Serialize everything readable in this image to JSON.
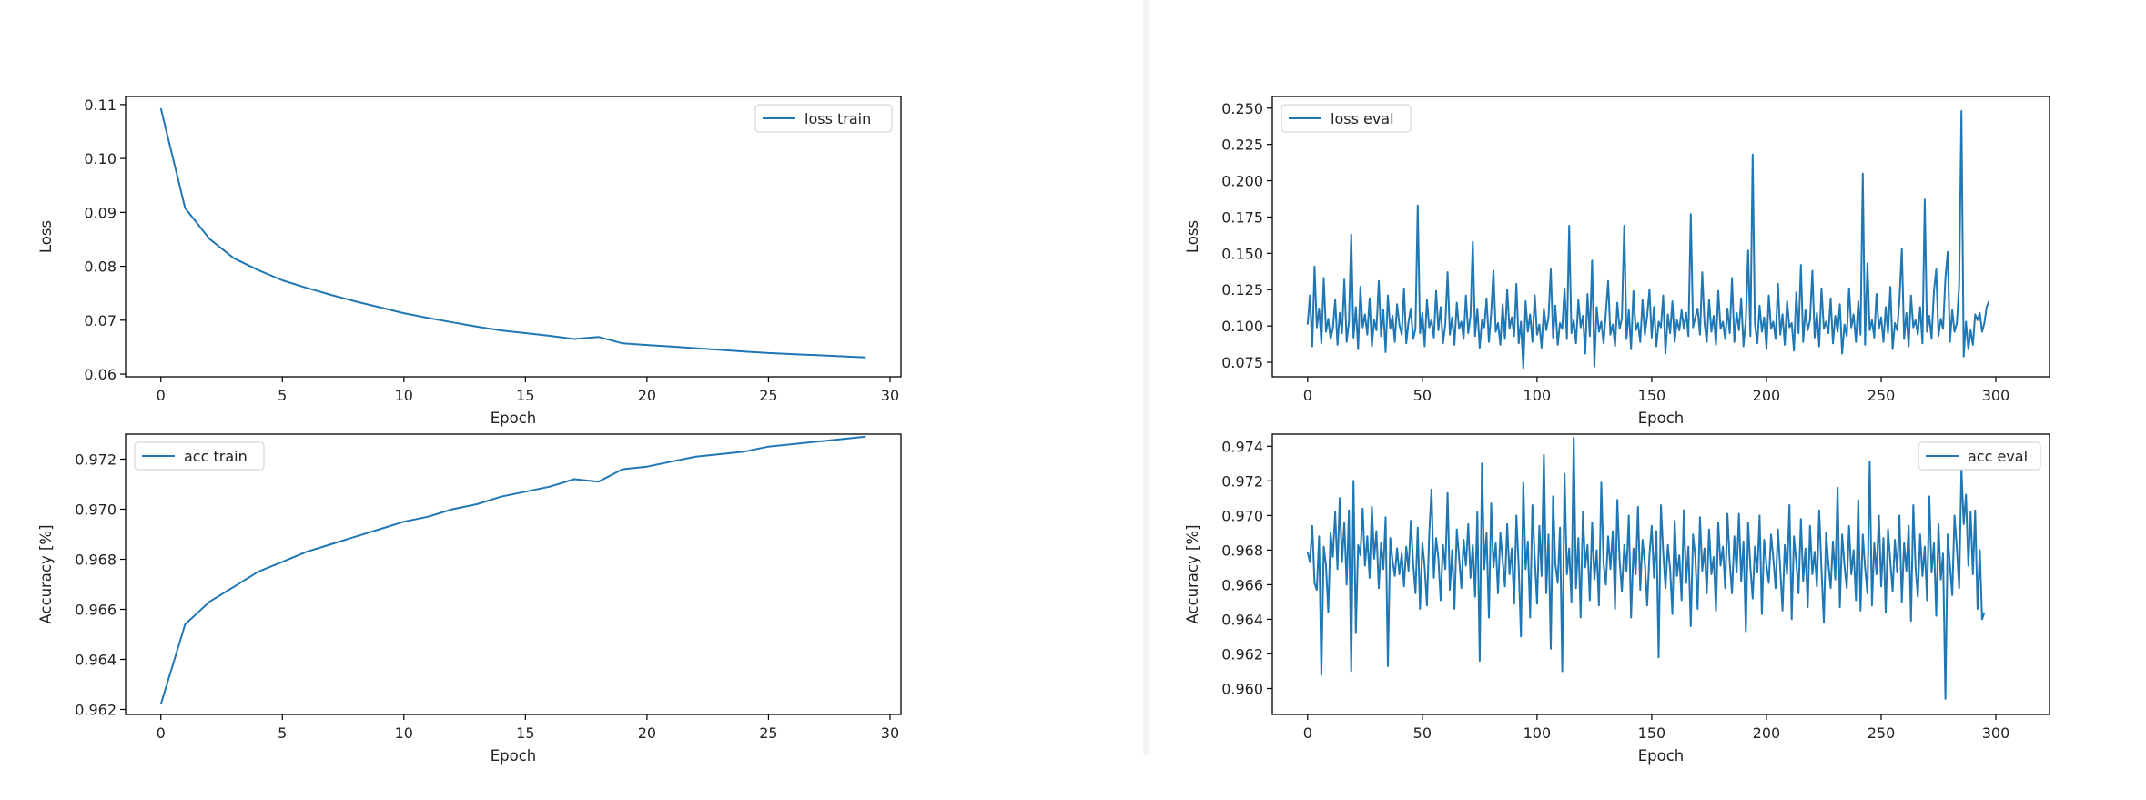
{
  "line_color": "#1f77b4",
  "chart_data": [
    {
      "type": "line",
      "id": "loss-train",
      "xlabel": "Epoch",
      "ylabel": "Loss",
      "xlim": [
        -1.45,
        30.45
      ],
      "ylim": [
        0.0595,
        0.1115
      ],
      "xticks": [
        0,
        5,
        10,
        15,
        20,
        25,
        30
      ],
      "yticks": [
        0.06,
        0.07,
        0.08,
        0.09,
        0.1,
        0.11
      ],
      "ytick_labels": [
        "0.06",
        "0.07",
        "0.08",
        "0.09",
        "0.10",
        "0.11"
      ],
      "legend_position": "top-right",
      "series": [
        {
          "name": "loss train",
          "x": [
            0,
            1,
            2,
            3,
            4,
            5,
            6,
            7,
            8,
            9,
            10,
            11,
            12,
            13,
            14,
            15,
            16,
            17,
            18,
            19,
            20,
            21,
            22,
            23,
            24,
            25,
            26,
            27,
            28,
            29
          ],
          "y": [
            0.1093,
            0.0908,
            0.0851,
            0.0815,
            0.0793,
            0.0774,
            0.076,
            0.0747,
            0.0735,
            0.0724,
            0.0713,
            0.0704,
            0.0696,
            0.0688,
            0.0681,
            0.0676,
            0.0671,
            0.0665,
            0.0669,
            0.0657,
            0.0654,
            0.0651,
            0.0648,
            0.0645,
            0.0642,
            0.0639,
            0.0637,
            0.0635,
            0.0633,
            0.0631
          ]
        }
      ]
    },
    {
      "type": "line",
      "id": "acc-train",
      "xlabel": "Epoch",
      "ylabel": "Accuracy [%]",
      "xlim": [
        -1.45,
        30.45
      ],
      "ylim": [
        0.9618,
        0.973
      ],
      "xticks": [
        0,
        5,
        10,
        15,
        20,
        25,
        30
      ],
      "yticks": [
        0.962,
        0.964,
        0.966,
        0.968,
        0.97,
        0.972
      ],
      "ytick_labels": [
        "0.962",
        "0.964",
        "0.966",
        "0.968",
        "0.970",
        "0.972"
      ],
      "legend_position": "top-left",
      "series": [
        {
          "name": "acc train",
          "x": [
            0,
            1,
            2,
            3,
            4,
            5,
            6,
            7,
            8,
            9,
            10,
            11,
            12,
            13,
            14,
            15,
            16,
            17,
            18,
            19,
            20,
            21,
            22,
            23,
            24,
            25,
            26,
            27,
            28,
            29
          ],
          "y": [
            0.9622,
            0.9654,
            0.9663,
            0.9669,
            0.9675,
            0.9679,
            0.9683,
            0.9686,
            0.9689,
            0.9692,
            0.9695,
            0.9697,
            0.97,
            0.9702,
            0.9705,
            0.9707,
            0.9709,
            0.9712,
            0.9711,
            0.9716,
            0.9717,
            0.9719,
            0.9721,
            0.9722,
            0.9723,
            0.9725,
            0.9726,
            0.9727,
            0.9728,
            0.9729
          ]
        }
      ]
    },
    {
      "type": "line",
      "id": "loss-eval",
      "xlabel": "Epoch",
      "ylabel": "Loss",
      "xlim": [
        -15.4,
        323.4
      ],
      "ylim": [
        0.065,
        0.258
      ],
      "xticks": [
        0,
        50,
        100,
        150,
        200,
        250,
        300
      ],
      "yticks": [
        0.075,
        0.1,
        0.125,
        0.15,
        0.175,
        0.2,
        0.225,
        0.25
      ],
      "ytick_labels": [
        "0.075",
        "0.100",
        "0.125",
        "0.150",
        "0.175",
        "0.200",
        "0.225",
        "0.250"
      ],
      "legend_position": "top-left",
      "series": [
        {
          "name": "loss eval",
          "x_start": 0,
          "x_step": 1,
          "y": [
            0.101,
            0.121,
            0.086,
            0.141,
            0.099,
            0.112,
            0.088,
            0.133,
            0.096,
            0.105,
            0.091,
            0.098,
            0.118,
            0.087,
            0.109,
            0.095,
            0.132,
            0.089,
            0.103,
            0.163,
            0.092,
            0.113,
            0.084,
            0.127,
            0.099,
            0.108,
            0.094,
            0.119,
            0.086,
            0.104,
            0.097,
            0.131,
            0.093,
            0.111,
            0.082,
            0.121,
            0.098,
            0.107,
            0.089,
            0.115,
            0.101,
            0.094,
            0.126,
            0.088,
            0.103,
            0.112,
            0.091,
            0.098,
            0.183,
            0.095,
            0.109,
            0.086,
            0.118,
            0.099,
            0.104,
            0.092,
            0.124,
            0.097,
            0.113,
            0.088,
            0.101,
            0.137,
            0.094,
            0.106,
            0.087,
            0.116,
            0.098,
            0.103,
            0.091,
            0.121,
            0.095,
            0.107,
            0.158,
            0.093,
            0.112,
            0.085,
            0.104,
            0.099,
            0.119,
            0.089,
            0.109,
            0.138,
            0.096,
            0.102,
            0.087,
            0.115,
            0.091,
            0.125,
            0.098,
            0.106,
            0.093,
            0.129,
            0.088,
            0.103,
            0.071,
            0.117,
            0.096,
            0.108,
            0.089,
            0.121,
            0.094,
            0.101,
            0.085,
            0.112,
            0.097,
            0.106,
            0.139,
            0.092,
            0.114,
            0.087,
            0.102,
            0.098,
            0.126,
            0.091,
            0.169,
            0.095,
            0.104,
            0.088,
            0.118,
            0.099,
            0.107,
            0.081,
            0.122,
            0.093,
            0.145,
            0.072,
            0.113,
            0.096,
            0.103,
            0.088,
            0.109,
            0.131,
            0.094,
            0.101,
            0.086,
            0.116,
            0.098,
            0.105,
            0.169,
            0.091,
            0.111,
            0.084,
            0.124,
            0.097,
            0.102,
            0.089,
            0.118,
            0.094,
            0.107,
            0.125,
            0.092,
            0.113,
            0.086,
            0.103,
            0.099,
            0.121,
            0.081,
            0.108,
            0.095,
            0.117,
            0.089,
            0.104,
            0.097,
            0.111,
            0.098,
            0.109,
            0.093,
            0.177,
            0.099,
            0.106,
            0.112,
            0.094,
            0.137,
            0.102,
            0.089,
            0.118,
            0.096,
            0.107,
            0.087,
            0.124,
            0.098,
            0.103,
            0.091,
            0.112,
            0.095,
            0.133,
            0.089,
            0.109,
            0.097,
            0.119,
            0.086,
            0.104,
            0.152,
            0.093,
            0.218,
            0.101,
            0.088,
            0.114,
            0.096,
            0.106,
            0.084,
            0.121,
            0.098,
            0.103,
            0.091,
            0.129,
            0.094,
            0.108,
            0.087,
            0.117,
            0.099,
            0.102,
            0.083,
            0.123,
            0.095,
            0.142,
            0.089,
            0.111,
            0.097,
            0.104,
            0.138,
            0.092,
            0.109,
            0.086,
            0.126,
            0.098,
            0.103,
            0.095,
            0.119,
            0.088,
            0.107,
            0.096,
            0.115,
            0.081,
            0.101,
            0.093,
            0.126,
            0.099,
            0.108,
            0.089,
            0.117,
            0.094,
            0.205,
            0.087,
            0.143,
            0.097,
            0.104,
            0.092,
            0.122,
            0.098,
            0.106,
            0.089,
            0.113,
            0.095,
            0.127,
            0.084,
            0.102,
            0.097,
            0.118,
            0.153,
            0.091,
            0.109,
            0.086,
            0.121,
            0.099,
            0.104,
            0.094,
            0.113,
            0.088,
            0.187,
            0.096,
            0.107,
            0.091,
            0.124,
            0.139,
            0.093,
            0.105,
            0.098,
            0.133,
            0.151,
            0.089,
            0.111,
            0.096,
            0.102,
            0.128,
            0.248,
            0.079,
            0.103,
            0.084,
            0.097,
            0.087,
            0.108,
            0.104,
            0.109,
            0.096,
            0.102,
            0.113,
            0.117
          ]
        }
      ]
    },
    {
      "type": "line",
      "id": "acc-eval",
      "xlabel": "Epoch",
      "ylabel": "Accuracy [%]",
      "xlim": [
        -15.4,
        323.4
      ],
      "ylim": [
        0.9585,
        0.9747
      ],
      "xticks": [
        0,
        50,
        100,
        150,
        200,
        250,
        300
      ],
      "yticks": [
        0.96,
        0.962,
        0.964,
        0.966,
        0.968,
        0.97,
        0.972,
        0.974
      ],
      "ytick_labels": [
        "0.960",
        "0.962",
        "0.964",
        "0.966",
        "0.968",
        "0.970",
        "0.972",
        "0.974"
      ],
      "legend_position": "top-right",
      "series": [
        {
          "name": "acc eval",
          "x_start": 0,
          "x_step": 1,
          "y": [
            0.9679,
            0.9673,
            0.9694,
            0.9661,
            0.9657,
            0.9688,
            0.9608,
            0.9682,
            0.9671,
            0.9644,
            0.969,
            0.9676,
            0.9702,
            0.9669,
            0.971,
            0.9673,
            0.9696,
            0.966,
            0.9703,
            0.961,
            0.972,
            0.9632,
            0.9683,
            0.9677,
            0.9704,
            0.9671,
            0.9688,
            0.9664,
            0.9705,
            0.9675,
            0.9691,
            0.9658,
            0.9684,
            0.9669,
            0.9699,
            0.9613,
            0.9687,
            0.9674,
            0.9665,
            0.9681,
            0.9666,
            0.9678,
            0.9659,
            0.9682,
            0.9668,
            0.9697,
            0.9672,
            0.9655,
            0.9693,
            0.9646,
            0.9684,
            0.967,
            0.9648,
            0.9689,
            0.9715,
            0.9664,
            0.9687,
            0.9675,
            0.9651,
            0.9683,
            0.9669,
            0.9713,
            0.9657,
            0.968,
            0.9646,
            0.9692,
            0.9676,
            0.9658,
            0.9686,
            0.9671,
            0.9695,
            0.9664,
            0.9683,
            0.9653,
            0.9702,
            0.9616,
            0.973,
            0.9669,
            0.969,
            0.9641,
            0.9707,
            0.967,
            0.9684,
            0.9655,
            0.969,
            0.9674,
            0.9659,
            0.9695,
            0.9666,
            0.9681,
            0.9649,
            0.97,
            0.9671,
            0.963,
            0.9719,
            0.9669,
            0.9685,
            0.9641,
            0.9706,
            0.9675,
            0.9649,
            0.9694,
            0.9665,
            0.9735,
            0.9655,
            0.9689,
            0.9623,
            0.9711,
            0.9672,
            0.9661,
            0.9693,
            0.961,
            0.9724,
            0.9666,
            0.9681,
            0.965,
            0.9745,
            0.9658,
            0.9687,
            0.9641,
            0.9702,
            0.967,
            0.9683,
            0.9651,
            0.9696,
            0.9663,
            0.968,
            0.9648,
            0.9719,
            0.9672,
            0.966,
            0.9688,
            0.9669,
            0.9691,
            0.9646,
            0.9709,
            0.9674,
            0.9656,
            0.9683,
            0.9668,
            0.97,
            0.9641,
            0.9681,
            0.9666,
            0.9705,
            0.9657,
            0.9686,
            0.9672,
            0.9648,
            0.9677,
            0.9694,
            0.9664,
            0.9691,
            0.9618,
            0.9706,
            0.9679,
            0.9658,
            0.9683,
            0.9669,
            0.9643,
            0.9697,
            0.9665,
            0.9677,
            0.9651,
            0.9703,
            0.9661,
            0.9682,
            0.9636,
            0.9689,
            0.9676,
            0.9646,
            0.9699,
            0.9668,
            0.9681,
            0.9655,
            0.9692,
            0.9666,
            0.9676,
            0.9645,
            0.9696,
            0.9671,
            0.9682,
            0.9658,
            0.9701,
            0.9673,
            0.9655,
            0.9688,
            0.9667,
            0.9701,
            0.9662,
            0.9685,
            0.9633,
            0.9696,
            0.967,
            0.9652,
            0.9682,
            0.9667,
            0.97,
            0.9643,
            0.9686,
            0.9671,
            0.9661,
            0.9689,
            0.9675,
            0.9658,
            0.9692,
            0.9669,
            0.9645,
            0.9683,
            0.9666,
            0.9706,
            0.964,
            0.9688,
            0.9673,
            0.9655,
            0.9698,
            0.9662,
            0.9681,
            0.9647,
            0.9694,
            0.9666,
            0.9679,
            0.9659,
            0.9703,
            0.9669,
            0.9638,
            0.969,
            0.9672,
            0.9658,
            0.9685,
            0.9663,
            0.9716,
            0.9647,
            0.9689,
            0.9671,
            0.9658,
            0.9694,
            0.9666,
            0.968,
            0.9651,
            0.9709,
            0.9645,
            0.9689,
            0.967,
            0.9655,
            0.9731,
            0.9648,
            0.9684,
            0.9666,
            0.97,
            0.9659,
            0.9687,
            0.9644,
            0.9692,
            0.9673,
            0.9656,
            0.9686,
            0.9667,
            0.97,
            0.965,
            0.9684,
            0.9668,
            0.9694,
            0.9639,
            0.9706,
            0.967,
            0.9653,
            0.9689,
            0.9665,
            0.9682,
            0.9651,
            0.9711,
            0.9667,
            0.9684,
            0.9642,
            0.9695,
            0.9663,
            0.9678,
            0.9594,
            0.9689,
            0.9671,
            0.9654,
            0.97,
            0.9681,
            0.9658,
            0.9727,
            0.9695,
            0.9712,
            0.9671,
            0.9702,
            0.9666,
            0.9703,
            0.9646,
            0.968,
            0.964,
            0.9644
          ]
        }
      ]
    }
  ]
}
